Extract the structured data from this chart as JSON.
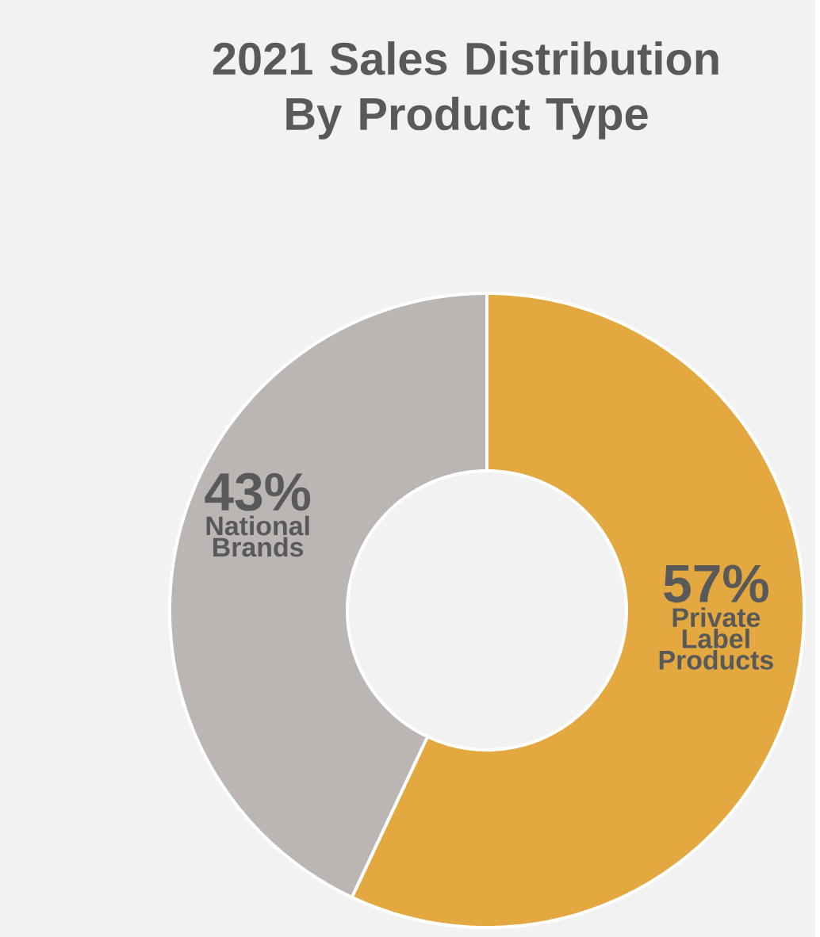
{
  "chart_data": {
    "type": "donut",
    "title": "2021 Sales Distribution By Product Type",
    "categories": [
      "Private Label Products",
      "National Brands"
    ],
    "values": [
      57,
      43
    ],
    "value_labels": [
      "57%",
      "43%"
    ],
    "colors": [
      "#e3a940",
      "#bbb6b3"
    ]
  }
}
